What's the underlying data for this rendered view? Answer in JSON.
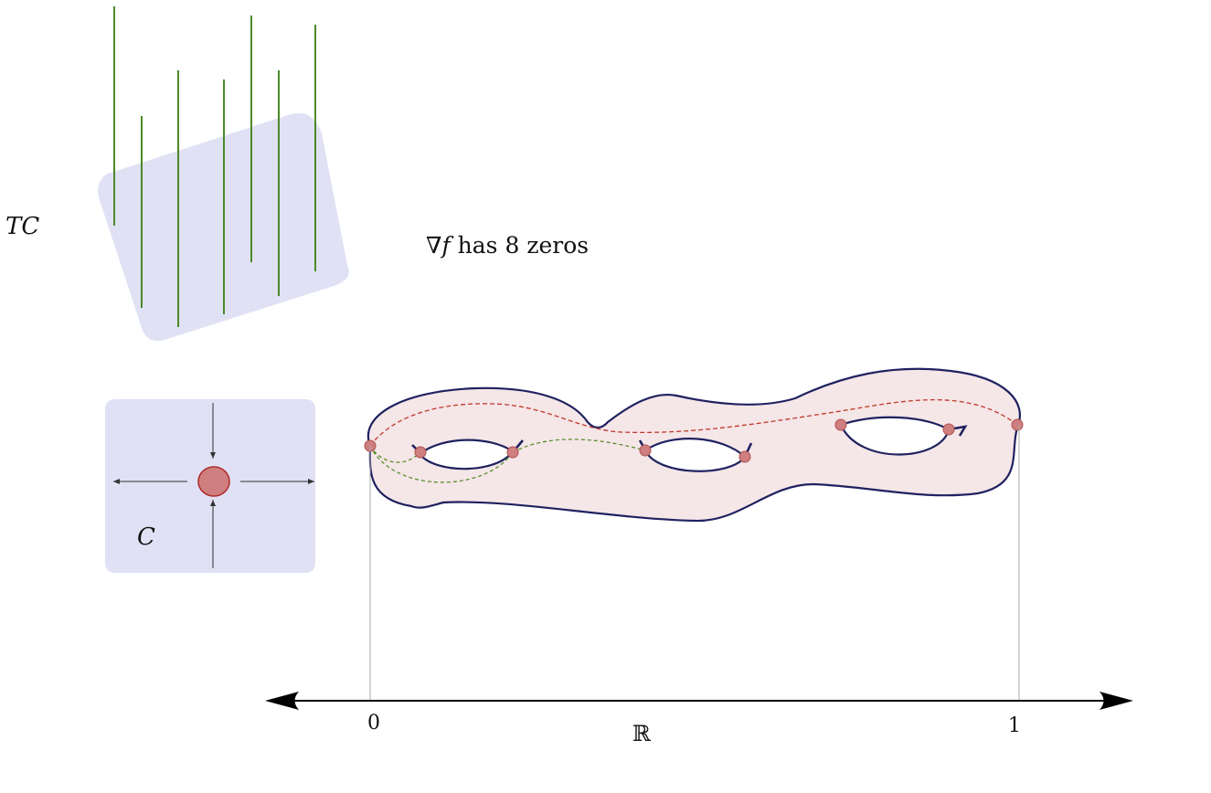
{
  "labels": {
    "tangent_space": "TC",
    "curve": "C",
    "gradient_symbol": "∇",
    "gradient_var": "f",
    "gradient_rest": " has 8 zeros",
    "axis_zero": "0",
    "axis_one": "1",
    "axis_reals": "ℝ"
  },
  "colors": {
    "panel_fill": "#e0e1f4",
    "vector_line": "#4a8a2a",
    "surface_fill": "#f5e6e8",
    "surface_stroke": "#1f2260",
    "critical_point_fill": "#cf7f7f",
    "critical_point_stroke": "#b05050",
    "red_flow": "#c0392b",
    "green_flow": "#5a8f2a",
    "axis": "#000000",
    "guide": "#aaaaaa"
  }
}
